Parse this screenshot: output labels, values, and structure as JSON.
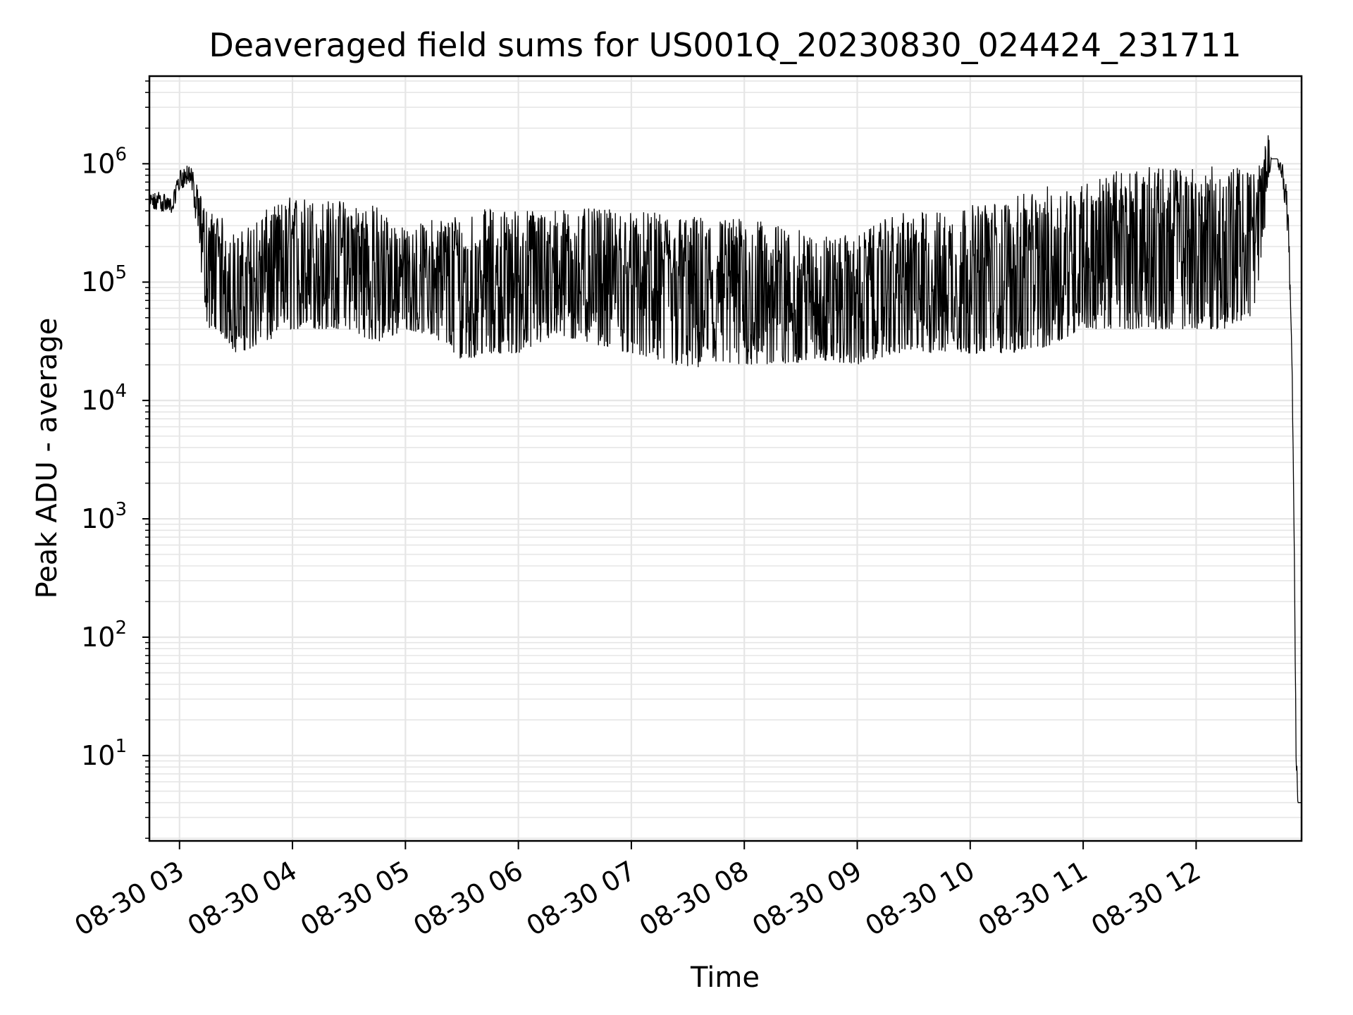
{
  "chart_data": {
    "type": "line",
    "title": "Deaveraged field sums for US001Q_20230830_024424_231711",
    "xlabel": "Time",
    "ylabel": "Peak ADU - average",
    "yscale": "log",
    "ylim": [
      1.9,
      5500000
    ],
    "xlim": [
      "2023-08-30 02:44",
      "2023-08-30 12:56"
    ],
    "grid": true,
    "line_color": "#000000",
    "grid_color": "#e6e6e6",
    "x_tick_labels": [
      "08-30 03",
      "08-30 04",
      "08-30 05",
      "08-30 06",
      "08-30 07",
      "08-30 08",
      "08-30 09",
      "08-30 10",
      "08-30 11",
      "08-30 12"
    ],
    "x_tick_times": [
      "2023-08-30 03:00",
      "2023-08-30 04:00",
      "2023-08-30 05:00",
      "2023-08-30 06:00",
      "2023-08-30 07:00",
      "2023-08-30 08:00",
      "2023-08-30 09:00",
      "2023-08-30 10:00",
      "2023-08-30 11:00",
      "2023-08-30 12:00"
    ],
    "y_tick_bases": [
      "10",
      "10",
      "10",
      "10",
      "10",
      "10"
    ],
    "y_tick_exponents": [
      "1",
      "2",
      "3",
      "4",
      "5",
      "6"
    ],
    "series": [
      {
        "x": [
          "2023-08-30 02:44",
          "2023-08-30 02:50",
          "2023-08-30 02:56",
          "2023-08-30 03:00",
          "2023-08-30 03:06",
          "2023-08-30 03:10",
          "2023-08-30 03:15",
          "2023-08-30 03:20",
          "2023-08-30 03:30",
          "2023-08-30 03:45",
          "2023-08-30 04:00",
          "2023-08-30 04:15",
          "2023-08-30 04:30",
          "2023-08-30 04:45",
          "2023-08-30 05:00",
          "2023-08-30 05:15",
          "2023-08-30 05:30",
          "2023-08-30 05:45",
          "2023-08-30 06:00",
          "2023-08-30 06:20",
          "2023-08-30 06:40",
          "2023-08-30 07:00",
          "2023-08-30 07:20",
          "2023-08-30 07:40",
          "2023-08-30 08:00",
          "2023-08-30 08:20",
          "2023-08-30 08:40",
          "2023-08-30 09:00",
          "2023-08-30 09:20",
          "2023-08-30 09:40",
          "2023-08-30 10:00",
          "2023-08-30 10:20",
          "2023-08-30 10:40",
          "2023-08-30 11:00",
          "2023-08-30 11:20",
          "2023-08-30 11:40",
          "2023-08-30 12:00",
          "2023-08-30 12:15",
          "2023-08-30 12:30",
          "2023-08-30 12:36",
          "2023-08-30 12:38",
          "2023-08-30 12:40",
          "2023-08-30 12:43",
          "2023-08-30 12:46",
          "2023-08-30 12:49",
          "2023-08-30 12:51",
          "2023-08-30 12:52",
          "2023-08-30 12:53",
          "2023-08-30 12:54",
          "2023-08-30 12:55",
          "2023-08-30 12:56"
        ],
        "upper": [
          550000,
          600000,
          500000,
          900000,
          1000000,
          600000,
          400000,
          400000,
          250000,
          400000,
          550000,
          500000,
          500000,
          450000,
          280000,
          350000,
          400000,
          420000,
          420000,
          420000,
          420000,
          400000,
          380000,
          360000,
          350000,
          300000,
          250000,
          250000,
          380000,
          400000,
          450000,
          500000,
          650000,
          700000,
          900000,
          950000,
          950000,
          950000,
          900000,
          1100000,
          2600000,
          1100000,
          1100000,
          1000000,
          500000,
          20000,
          1000,
          20,
          4,
          4,
          4
        ],
        "lower": [
          400000,
          400000,
          380000,
          600000,
          700000,
          200000,
          40000,
          40000,
          25000,
          30000,
          40000,
          40000,
          40000,
          30000,
          40000,
          35000,
          22000,
          25000,
          25000,
          35000,
          30000,
          25000,
          20000,
          18000,
          20000,
          20000,
          22000,
          20000,
          25000,
          25000,
          25000,
          25000,
          28000,
          40000,
          40000,
          40000,
          40000,
          40000,
          50000,
          200000,
          700000,
          1000000,
          1000000,
          700000,
          200000,
          15000,
          800,
          10,
          3.8,
          3.8,
          3.8
        ]
      }
    ]
  }
}
